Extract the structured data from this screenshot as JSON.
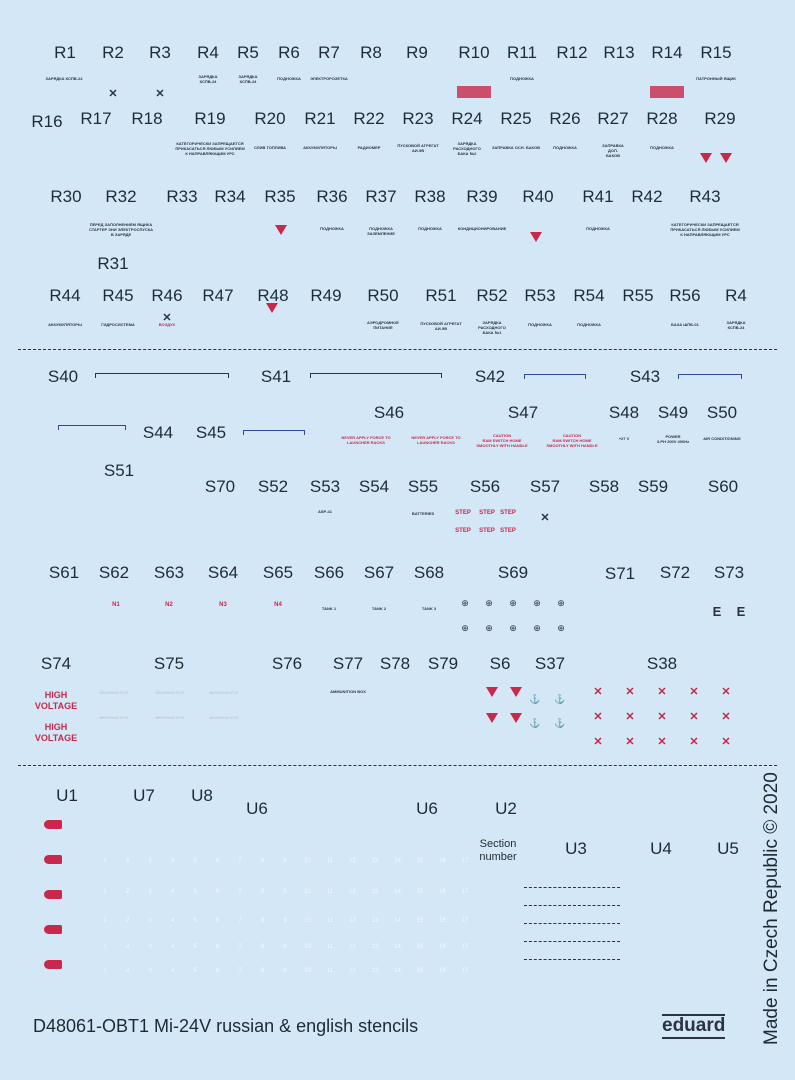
{
  "part_labels": [
    "R1",
    "R2",
    "R3",
    "R4",
    "R5",
    "R6",
    "R7",
    "R8",
    "R9",
    "R10",
    "R11",
    "R12",
    "R13",
    "R14",
    "R15",
    "R16",
    "R17",
    "R18",
    "R19",
    "R20",
    "R21",
    "R22",
    "R23",
    "R24",
    "R25",
    "R26",
    "R27",
    "R28",
    "R29",
    "R30",
    "R32",
    "R33",
    "R34",
    "R35",
    "R36",
    "R37",
    "R38",
    "R39",
    "R40",
    "R41",
    "R42",
    "R43",
    "R31",
    "R44",
    "R45",
    "R46",
    "R47",
    "R48",
    "R49",
    "R50",
    "R51",
    "R52",
    "R53",
    "R54",
    "R55",
    "R56",
    "R4",
    "S40",
    "S41",
    "S42",
    "S43",
    "S44",
    "S45",
    "S46",
    "S47",
    "S48",
    "S49",
    "S50",
    "S51",
    "S70",
    "S52",
    "S53",
    "S54",
    "S55",
    "S56",
    "S57",
    "S58",
    "S59",
    "S60",
    "S61",
    "S62",
    "S63",
    "S64",
    "S65",
    "S66",
    "S67",
    "S68",
    "S69",
    "S71",
    "S72",
    "S73",
    "S74",
    "S75",
    "S76",
    "S77",
    "S78",
    "S79",
    "S6",
    "S37",
    "S38",
    "U1",
    "U7",
    "U8",
    "U6",
    "U6",
    "U2",
    "U3",
    "U4",
    "U5"
  ],
  "stencils": [
    {
      "text": "ЗАРЯДКА КСПВ-24",
      "color": "dark"
    },
    {
      "text": "ЗАРЯДКА\nКСПВ-24",
      "color": "dark"
    },
    {
      "text": "ЗАРЯДКА\nКСПВ-24",
      "color": "dark"
    },
    {
      "text": "ПОДНОЖКА",
      "color": "dark"
    },
    {
      "text": "ЭЛЕКТРОРОЗЕТКА",
      "color": "dark"
    },
    {
      "text": "ПОДНОЖКА",
      "color": "dark"
    },
    {
      "text": "ПАТРОННЫЙ ЯЩИК",
      "color": "dark"
    },
    {
      "text": "КАТЕГОРИЧЕСКИ ЗАПРЕЩАЕТСЯ\nПРИКАСАТЬСЯ ЛЮБЫМ УСИЛИЕМ\nК НАПРАВЛЯЮЩИМ УРС",
      "color": "dark"
    },
    {
      "text": "СЛИВ ТОПЛИВА",
      "color": "dark"
    },
    {
      "text": "АККУМУЛЯТОРЫ",
      "color": "dark"
    },
    {
      "text": "РАДИОМЕР",
      "color": "dark"
    },
    {
      "text": "ПУСКОВОЙ АГРЕГАТ\nАИ-9В",
      "color": "dark"
    },
    {
      "text": "ЗАРЯДКА\nРАСХОДНОГО\nБАКА №2",
      "color": "dark"
    },
    {
      "text": "ЗАПРАВКА ОСН. БАКОВ",
      "color": "dark"
    },
    {
      "text": "ПОДНОЖКА",
      "color": "dark"
    },
    {
      "text": "ЗАПРАВКА\nДОП.\nБАКОВ",
      "color": "dark"
    },
    {
      "text": "ПОДНОЖКА",
      "color": "dark"
    },
    {
      "text": "ПЕРЕД ЗАПОЛНЕНИЕМ ЯЩИКА\nСТАРТЕР ЗНИ ЭЛЕКТРОСПУСКА\nВ ЗАРЯДЕ",
      "color": "dark"
    },
    {
      "text": "ПОДНОЖКА",
      "color": "dark"
    },
    {
      "text": "ПОДНОЖКА\nЗАЗЕМЛЕНИЕ",
      "color": "dark"
    },
    {
      "text": "ПОДНОЖКА",
      "color": "dark"
    },
    {
      "text": "КОНДИЦИОНИРОВАНИЕ",
      "color": "dark"
    },
    {
      "text": "ПОДНОЖКА",
      "color": "dark"
    },
    {
      "text": "КАТЕГОРИЧЕСКИ ЗАПРЕЩАЕТСЯ\nПРИКАСАТЬСЯ ЛЮБЫМ УСИЛИЕМ\nК НАПРАВЛЯЮЩИМ УРС",
      "color": "dark"
    },
    {
      "text": "АККУМУЛЯТОРЫ",
      "color": "dark"
    },
    {
      "text": "ГИДРОСИСТЕМА",
      "color": "dark"
    },
    {
      "text": "ВОЗДУХ",
      "color": "red"
    },
    {
      "text": "АЭРОДРОМНОЕ\nПИТАНИЕ",
      "color": "dark"
    },
    {
      "text": "ПУСКОВОЙ АГРЕГАТ\nАИ-9В",
      "color": "dark"
    },
    {
      "text": "ЗАРЯДКА\nРАСХОДНОГО\nБАКА №1",
      "color": "dark"
    },
    {
      "text": "ПОДНОЖКА",
      "color": "dark"
    },
    {
      "text": "ПОДНОЖКА",
      "color": "dark"
    },
    {
      "text": "БАЗА ШПБ-01",
      "color": "dark"
    },
    {
      "text": "ЗАРЯДКА\nКСПВ-24",
      "color": "dark"
    },
    {
      "text": "NEVER APPLY FORCE TO\nLAUNCHER RACKS",
      "color": "red"
    },
    {
      "text": "NEVER APPLY FORCE TO\nLAUNCHER RACKS",
      "color": "red"
    },
    {
      "text": "CAUTION\nRAM SWITCH HOME\nSMOOTHLY WITH HANDLE",
      "color": "red"
    },
    {
      "text": "CAUTION\nRAM SWITCH HOME\nSMOOTHLY WITH HANDLE",
      "color": "red"
    },
    {
      "text": "+27 V",
      "color": "dark"
    },
    {
      "text": "POWER\n3-PH 200V 400Hz",
      "color": "dark"
    },
    {
      "text": "AIR CONDITIONING",
      "color": "dark"
    },
    {
      "text": "ASP-41",
      "color": "dark"
    },
    {
      "text": "BATTERIES",
      "color": "dark"
    },
    {
      "text": "STEP",
      "color": "red"
    },
    {
      "text": "STEP",
      "color": "red"
    },
    {
      "text": "STEP",
      "color": "red"
    },
    {
      "text": "STEP",
      "color": "red"
    },
    {
      "text": "STEP",
      "color": "red"
    },
    {
      "text": "STEP",
      "color": "red"
    },
    {
      "text": "N1",
      "color": "red"
    },
    {
      "text": "N2",
      "color": "red"
    },
    {
      "text": "N3",
      "color": "red"
    },
    {
      "text": "N4",
      "color": "red"
    },
    {
      "text": "TANK 1",
      "color": "dark"
    },
    {
      "text": "TANK 2",
      "color": "dark"
    },
    {
      "text": "TANK 3",
      "color": "dark"
    },
    {
      "text": "HIGH\nVOLTAGE",
      "color": "red"
    },
    {
      "text": "HIGH\nVOLTAGE",
      "color": "red"
    },
    {
      "text": "MOORING EYE",
      "color": "grey"
    },
    {
      "text": "MOORING EYE",
      "color": "grey"
    },
    {
      "text": "MOORING EYE",
      "color": "grey"
    },
    {
      "text": "MOORING EYE",
      "color": "grey"
    },
    {
      "text": "MOORING EYE",
      "color": "grey"
    },
    {
      "text": "MOORING EYE",
      "color": "grey"
    },
    {
      "text": "AMMUNITION BOX",
      "color": "dark"
    }
  ],
  "section_number": "Section\nnumber",
  "section_numbers": [
    "1",
    "2",
    "3",
    "4",
    "5",
    "6",
    "7",
    "8",
    "9",
    "10",
    "11",
    "12",
    "13",
    "14",
    "15",
    "16",
    "17"
  ],
  "footer": {
    "title": "D48061-OBT1 Mi-24V russian & english stencils",
    "logo": "eduard",
    "made_in": "Made in Czech Republic © 2020"
  },
  "colors": {
    "background": "#d4e7f7",
    "stencil_red": "#c8284a",
    "stencil_dark": "#2b3440",
    "scale_blue": "#2e4a9a"
  }
}
